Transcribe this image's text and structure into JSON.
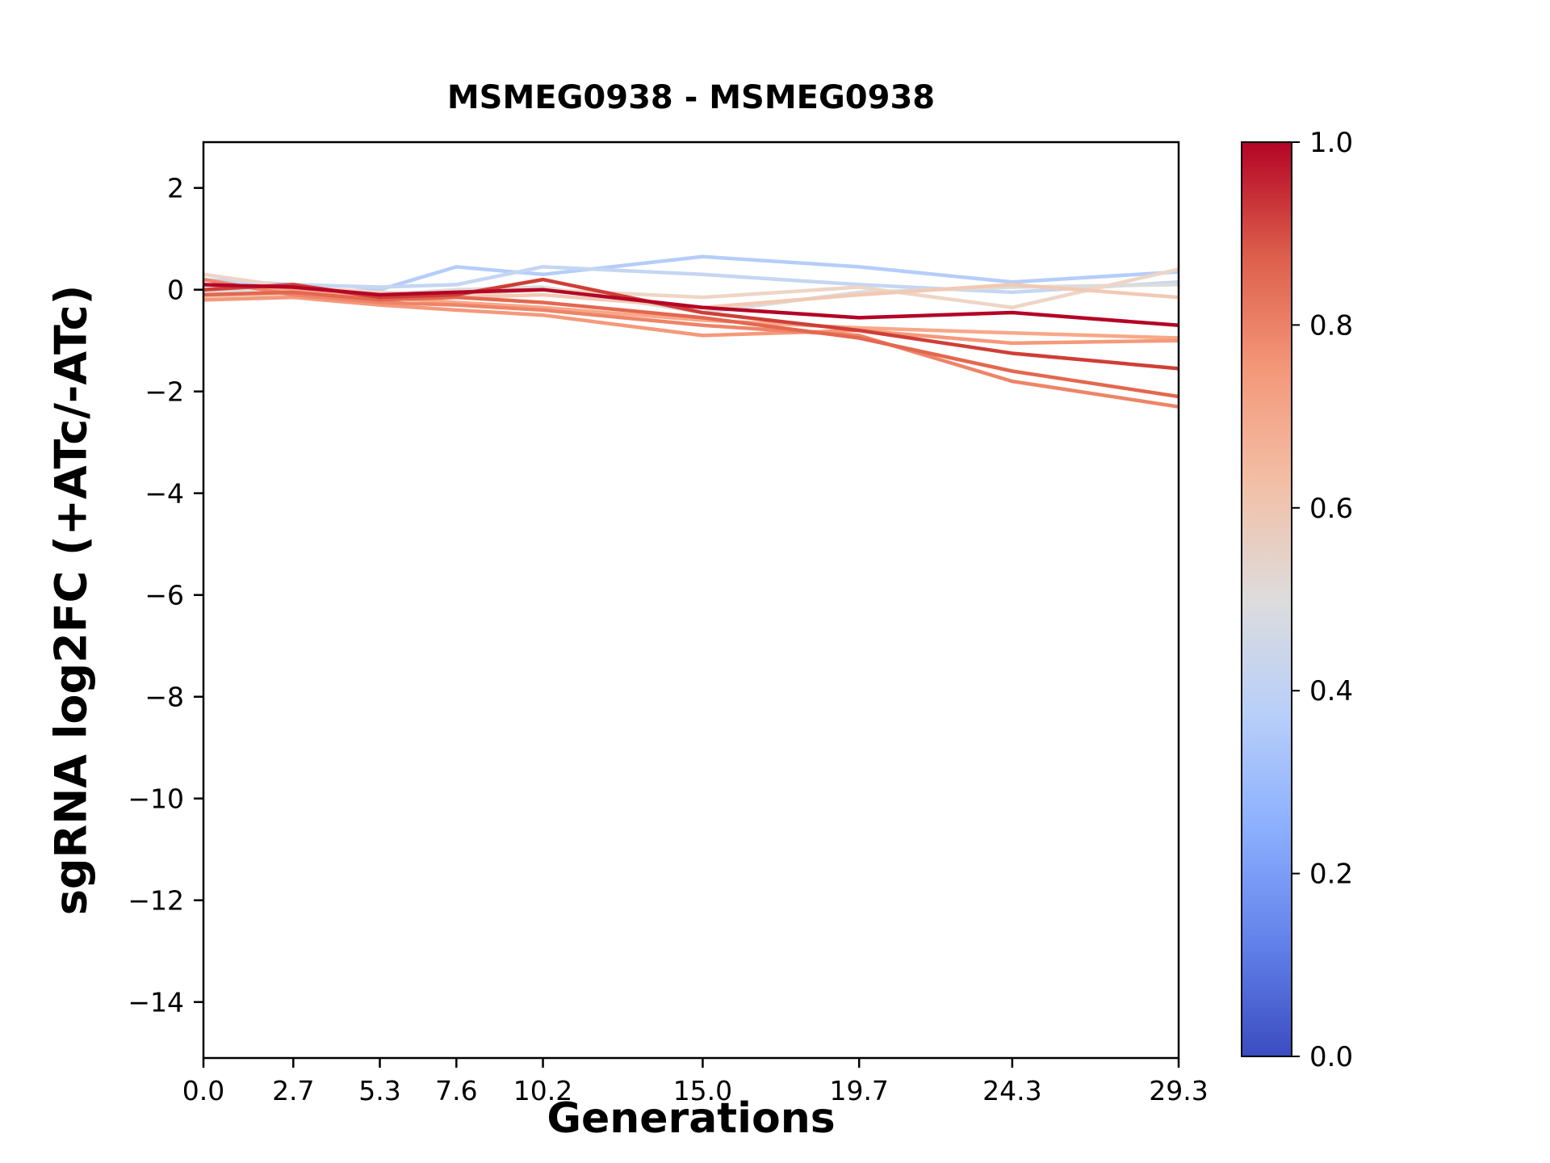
{
  "chart_data": {
    "type": "line",
    "title": "MSMEG0938 - MSMEG0938",
    "xlabel": "Generations",
    "ylabel": "sgRNA log2FC (+ATc/-ATc)",
    "x": [
      0.0,
      2.7,
      5.3,
      7.6,
      10.2,
      15.0,
      19.7,
      24.3,
      29.3
    ],
    "xlim": [
      0.0,
      29.3
    ],
    "ylim": [
      -15.1,
      2.9
    ],
    "xticks": [
      "0.0",
      "2.7",
      "5.3",
      "7.6",
      "10.2",
      "15.0",
      "19.7",
      "24.3",
      "29.3"
    ],
    "xtick_values": [
      0.0,
      2.7,
      5.3,
      7.6,
      10.2,
      15.0,
      19.7,
      24.3,
      29.3
    ],
    "yticks": [
      "2",
      "0",
      "−2",
      "−4",
      "−6",
      "−8",
      "−10",
      "−12",
      "−14"
    ],
    "ytick_values": [
      2,
      0,
      -2,
      -4,
      -6,
      -8,
      -10,
      -12,
      -14
    ],
    "grid": false,
    "plot_background": "#ffffff",
    "series": [
      {
        "colormap_value": 0.38,
        "color": "#b5cdfa",
        "values": [
          0.1,
          -0.05,
          0.0,
          0.45,
          0.3,
          0.65,
          0.45,
          0.15,
          0.35
        ]
      },
      {
        "colormap_value": 0.42,
        "color": "#c5d6f2",
        "values": [
          0.2,
          0.1,
          0.05,
          0.1,
          0.45,
          0.3,
          0.1,
          -0.05,
          0.15
        ]
      },
      {
        "colormap_value": 0.5,
        "color": "#dcdcda",
        "values": [
          -0.05,
          0.0,
          -0.1,
          0.0,
          0.05,
          -0.45,
          -0.05,
          0.05,
          0.1
        ]
      },
      {
        "colormap_value": 0.58,
        "color": "#eed5c6",
        "values": [
          0.3,
          0.05,
          -0.05,
          -0.1,
          0.0,
          -0.15,
          0.05,
          -0.35,
          0.4
        ]
      },
      {
        "colormap_value": 0.62,
        "color": "#f2c9b4",
        "values": [
          -0.15,
          -0.1,
          -0.2,
          -0.15,
          -0.1,
          -0.35,
          -0.1,
          0.1,
          -0.15
        ]
      },
      {
        "colormap_value": 0.7,
        "color": "#f7a889",
        "values": [
          0.1,
          0.0,
          -0.15,
          -0.25,
          -0.35,
          -0.6,
          -0.75,
          -0.85,
          -0.95
        ]
      },
      {
        "colormap_value": 0.75,
        "color": "#f5997b",
        "values": [
          -0.2,
          -0.15,
          -0.3,
          -0.4,
          -0.5,
          -0.9,
          -0.8,
          -1.05,
          -1.0
        ]
      },
      {
        "colormap_value": 0.8,
        "color": "#ee8468",
        "values": [
          0.2,
          -0.1,
          -0.25,
          -0.3,
          -0.4,
          -0.7,
          -0.9,
          -1.8,
          -2.3
        ]
      },
      {
        "colormap_value": 0.85,
        "color": "#e4674f",
        "values": [
          -0.1,
          -0.05,
          -0.2,
          -0.15,
          -0.25,
          -0.55,
          -0.95,
          -1.6,
          -2.1
        ]
      },
      {
        "colormap_value": 0.92,
        "color": "#cf3e36",
        "values": [
          0.0,
          0.1,
          -0.15,
          -0.1,
          0.2,
          -0.45,
          -0.8,
          -1.25,
          -1.55
        ]
      },
      {
        "colormap_value": 1.0,
        "color": "#b40426",
        "values": [
          0.1,
          0.05,
          -0.1,
          -0.05,
          0.0,
          -0.35,
          -0.55,
          -0.45,
          -0.7
        ]
      }
    ],
    "colorbar": {
      "colormap": "coolwarm",
      "range": [
        0.0,
        1.0
      ],
      "tick_labels": [
        "1.0",
        "0.8",
        "0.6",
        "0.4",
        "0.2",
        "0.0"
      ],
      "tick_positions": [
        1.0,
        0.8,
        0.6,
        0.4,
        0.2,
        0.0
      ],
      "gradient_stops": [
        {
          "t": 0.0,
          "color": "#3b4cc0"
        },
        {
          "t": 0.125,
          "color": "#6282ea"
        },
        {
          "t": 0.25,
          "color": "#8caffe"
        },
        {
          "t": 0.375,
          "color": "#b8cff9"
        },
        {
          "t": 0.5,
          "color": "#dddcdc"
        },
        {
          "t": 0.625,
          "color": "#f2c0a7"
        },
        {
          "t": 0.75,
          "color": "#f4987a"
        },
        {
          "t": 0.875,
          "color": "#dd5f4b"
        },
        {
          "t": 1.0,
          "color": "#b40426"
        }
      ]
    }
  }
}
